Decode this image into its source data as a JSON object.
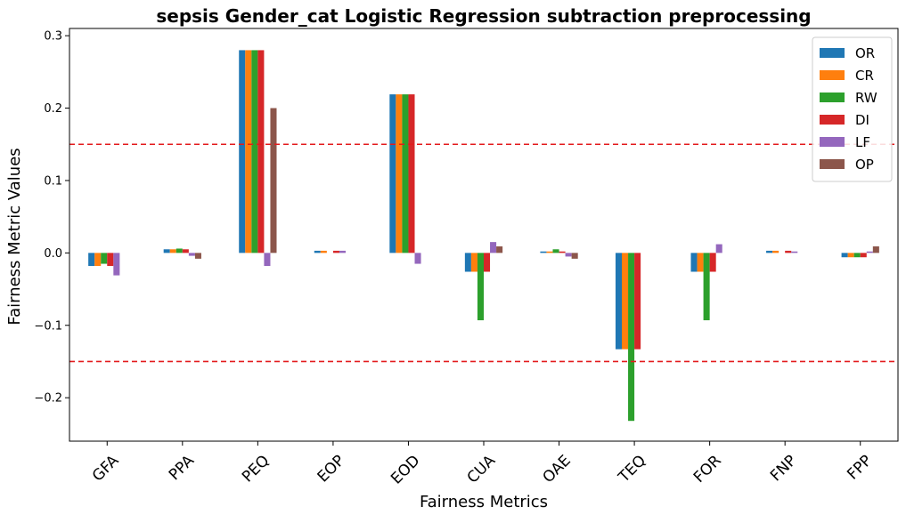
{
  "chart_data": {
    "type": "bar",
    "title": "sepsis Gender_cat Logistic Regression subtraction preprocessing",
    "xlabel": "Fairness Metrics",
    "ylabel": "Fairness Metric Values",
    "categories": [
      "GFA",
      "PPA",
      "PEQ",
      "EOP",
      "EOD",
      "CUA",
      "OAE",
      "TEQ",
      "FOR",
      "FNP",
      "FPP"
    ],
    "ylim": [
      -0.26,
      0.31
    ],
    "yticks": [
      -0.2,
      -0.1,
      0.0,
      0.1,
      0.2,
      0.3
    ],
    "ytick_labels": [
      "−0.2",
      "−0.1",
      "0.0",
      "0.1",
      "0.2",
      "0.3"
    ],
    "reference_lines": [
      0.15,
      -0.15
    ],
    "reference_line_color": "#e31a1c",
    "legend_position": "top-right",
    "grid": false,
    "series": [
      {
        "name": "OR",
        "color": "#1f77b4",
        "values": [
          -0.018,
          0.005,
          0.28,
          0.003,
          0.219,
          -0.026,
          0.002,
          -0.133,
          -0.026,
          0.003,
          -0.006
        ]
      },
      {
        "name": "CR",
        "color": "#ff7f0e",
        "values": [
          -0.018,
          0.005,
          0.28,
          0.003,
          0.219,
          -0.026,
          0.002,
          -0.133,
          -0.026,
          0.003,
          -0.006
        ]
      },
      {
        "name": "RW",
        "color": "#2ca02c",
        "values": [
          -0.015,
          0.006,
          0.28,
          0.0,
          0.219,
          -0.093,
          0.005,
          -0.232,
          -0.093,
          0.0,
          -0.006
        ]
      },
      {
        "name": "DI",
        "color": "#d62728",
        "values": [
          -0.018,
          0.005,
          0.28,
          0.003,
          0.219,
          -0.026,
          0.002,
          -0.133,
          -0.026,
          0.003,
          -0.006
        ]
      },
      {
        "name": "LF",
        "color": "#9467bd",
        "values": [
          -0.031,
          -0.004,
          -0.018,
          0.003,
          -0.015,
          0.015,
          -0.005,
          0.0,
          0.012,
          0.002,
          0.002
        ]
      },
      {
        "name": "OP",
        "color": "#8c564b",
        "values": [
          0.0,
          -0.008,
          0.2,
          0.0,
          0.0,
          0.009,
          -0.008,
          0.0,
          0.0,
          0.0,
          0.009
        ]
      }
    ]
  }
}
